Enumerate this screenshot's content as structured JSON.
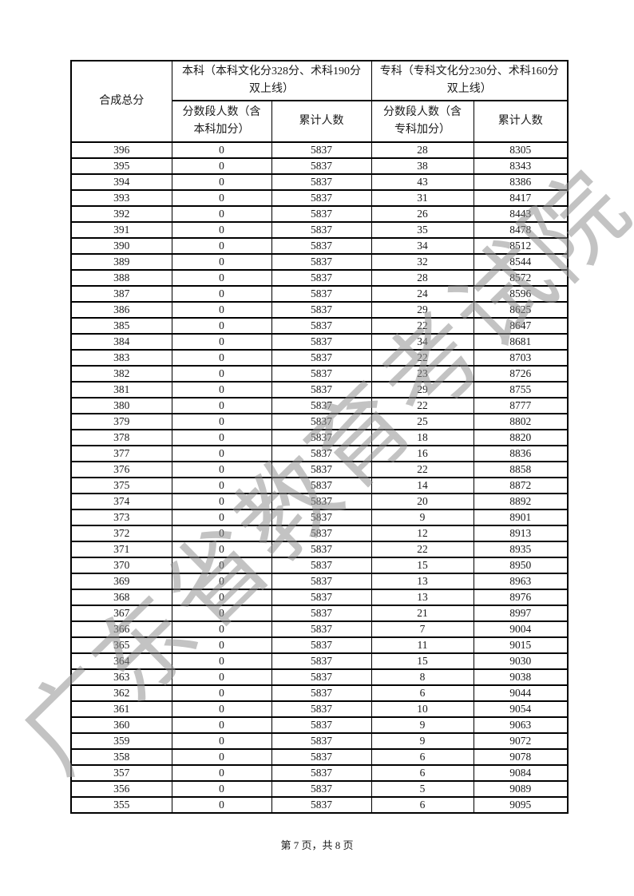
{
  "watermark": {
    "text": "广东省教育考试院",
    "color": "#919191"
  },
  "table": {
    "header": {
      "col_score": "合成总分",
      "group_benke": "本科（本科文化分328分、术科190分双上线）",
      "group_zhuanke": "专科（专科文化分230分、术科160分双上线）",
      "sub_benke_segment": "分数段人数（含本科加分）",
      "sub_benke_cumulative": "累计人数",
      "sub_zhuanke_segment": "分数段人数（含专科加分）",
      "sub_zhuanke_cumulative": "累计人数"
    },
    "rows": [
      [
        396,
        0,
        5837,
        28,
        8305
      ],
      [
        395,
        0,
        5837,
        38,
        8343
      ],
      [
        394,
        0,
        5837,
        43,
        8386
      ],
      [
        393,
        0,
        5837,
        31,
        8417
      ],
      [
        392,
        0,
        5837,
        26,
        8443
      ],
      [
        391,
        0,
        5837,
        35,
        8478
      ],
      [
        390,
        0,
        5837,
        34,
        8512
      ],
      [
        389,
        0,
        5837,
        32,
        8544
      ],
      [
        388,
        0,
        5837,
        28,
        8572
      ],
      [
        387,
        0,
        5837,
        24,
        8596
      ],
      [
        386,
        0,
        5837,
        29,
        8625
      ],
      [
        385,
        0,
        5837,
        22,
        8647
      ],
      [
        384,
        0,
        5837,
        34,
        8681
      ],
      [
        383,
        0,
        5837,
        22,
        8703
      ],
      [
        382,
        0,
        5837,
        23,
        8726
      ],
      [
        381,
        0,
        5837,
        29,
        8755
      ],
      [
        380,
        0,
        5837,
        22,
        8777
      ],
      [
        379,
        0,
        5837,
        25,
        8802
      ],
      [
        378,
        0,
        5837,
        18,
        8820
      ],
      [
        377,
        0,
        5837,
        16,
        8836
      ],
      [
        376,
        0,
        5837,
        22,
        8858
      ],
      [
        375,
        0,
        5837,
        14,
        8872
      ],
      [
        374,
        0,
        5837,
        20,
        8892
      ],
      [
        373,
        0,
        5837,
        9,
        8901
      ],
      [
        372,
        0,
        5837,
        12,
        8913
      ],
      [
        371,
        0,
        5837,
        22,
        8935
      ],
      [
        370,
        0,
        5837,
        15,
        8950
      ],
      [
        369,
        0,
        5837,
        13,
        8963
      ],
      [
        368,
        0,
        5837,
        13,
        8976
      ],
      [
        367,
        0,
        5837,
        21,
        8997
      ],
      [
        366,
        0,
        5837,
        7,
        9004
      ],
      [
        365,
        0,
        5837,
        11,
        9015
      ],
      [
        364,
        0,
        5837,
        15,
        9030
      ],
      [
        363,
        0,
        5837,
        8,
        9038
      ],
      [
        362,
        0,
        5837,
        6,
        9044
      ],
      [
        361,
        0,
        5837,
        10,
        9054
      ],
      [
        360,
        0,
        5837,
        9,
        9063
      ],
      [
        359,
        0,
        5837,
        9,
        9072
      ],
      [
        358,
        0,
        5837,
        6,
        9078
      ],
      [
        357,
        0,
        5837,
        6,
        9084
      ],
      [
        356,
        0,
        5837,
        5,
        9089
      ],
      [
        355,
        0,
        5837,
        6,
        9095
      ]
    ]
  },
  "footer": {
    "page_label": "第 7 页，共 8 页"
  }
}
